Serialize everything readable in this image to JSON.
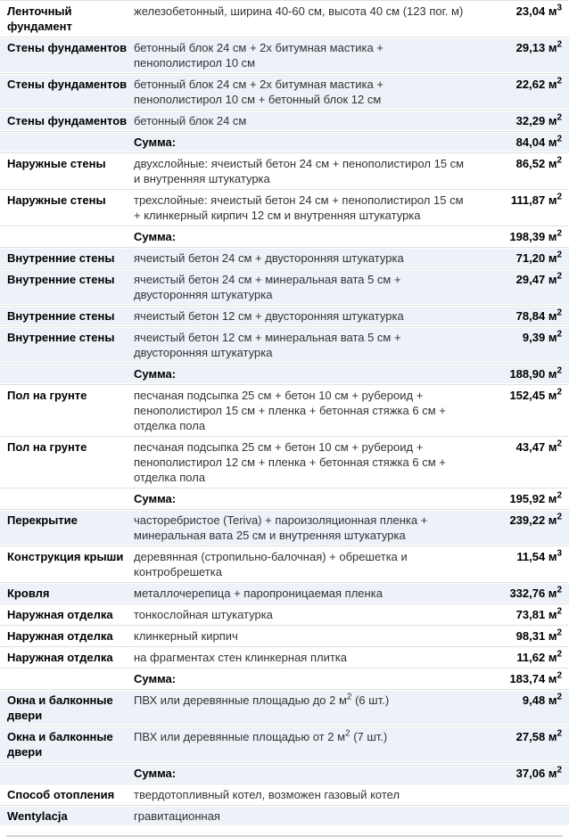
{
  "colors": {
    "tint_row_bg": "#edf1f8",
    "row_divider": "#e0e0e0",
    "bottom_divider": "#d5d5d5",
    "label_text": "#000000",
    "desc_text": "#333333"
  },
  "table": {
    "rows": [
      {
        "label": "Ленточный фундамент",
        "desc": [
          {
            "t": "железобетонный, ширина 40-60 см, высота 40 см (123 пог. м)"
          }
        ],
        "value": "23,04",
        "unit": "м",
        "exp": "3",
        "tint": false,
        "sum": false
      },
      {
        "label": "Стены фундаментов",
        "desc": [
          {
            "t": "бетонный блок 24 см + 2х битумная мастика + пенополистирол 10 см"
          }
        ],
        "value": "29,13",
        "unit": "м",
        "exp": "2",
        "tint": true,
        "sum": false
      },
      {
        "label": "Стены фундаментов",
        "desc": [
          {
            "t": "бетонный блок 24 см + 2х битумная мастика + пенополистирол 10 см + бетонный блок 12 см"
          }
        ],
        "value": "22,62",
        "unit": "м",
        "exp": "2",
        "tint": true,
        "sum": false
      },
      {
        "label": "Стены фундаментов",
        "desc": [
          {
            "t": "бетонный блок 24 см"
          }
        ],
        "value": "32,29",
        "unit": "м",
        "exp": "2",
        "tint": true,
        "sum": false
      },
      {
        "label": "",
        "desc": [
          {
            "t": "Сумма:"
          }
        ],
        "value": "84,04",
        "unit": "м",
        "exp": "2",
        "tint": true,
        "sum": true
      },
      {
        "label": "Наружные стены",
        "desc": [
          {
            "t": "двухслойные: ячеистый бетон 24 см + пенополистирол 15 см и внутренняя штукатурка"
          }
        ],
        "value": "86,52",
        "unit": "м",
        "exp": "2",
        "tint": false,
        "sum": false
      },
      {
        "label": "Наружные стены",
        "desc": [
          {
            "t": "трехслойные: ячеистый бетон 24 см + пенополистирол 15 см + клинкерный кирпич 12 см и внутренняя штукатурка"
          }
        ],
        "value": "111,87",
        "unit": "м",
        "exp": "2",
        "tint": false,
        "sum": false
      },
      {
        "label": "",
        "desc": [
          {
            "t": "Сумма:"
          }
        ],
        "value": "198,39",
        "unit": "м",
        "exp": "2",
        "tint": false,
        "sum": true
      },
      {
        "label": "Внутренние стены",
        "desc": [
          {
            "t": "ячеистый бетон 24 см + двусторонняя штукатурка"
          }
        ],
        "value": "71,20",
        "unit": "м",
        "exp": "2",
        "tint": true,
        "sum": false
      },
      {
        "label": "Внутренние стены",
        "desc": [
          {
            "t": "ячеистый бетон 24 см + минеральная вата 5 см + двусторонняя штукатурка"
          }
        ],
        "value": "29,47",
        "unit": "м",
        "exp": "2",
        "tint": true,
        "sum": false
      },
      {
        "label": "Внутренние стены",
        "desc": [
          {
            "t": "ячеистый бетон 12 см + двусторонняя штукатурка"
          }
        ],
        "value": "78,84",
        "unit": "м",
        "exp": "2",
        "tint": true,
        "sum": false
      },
      {
        "label": "Внутренние стены",
        "desc": [
          {
            "t": "ячеистый бетон 12 см + минеральная вата 5 см + двусторонняя штукатурка"
          }
        ],
        "value": "9,39",
        "unit": "м",
        "exp": "2",
        "tint": true,
        "sum": false
      },
      {
        "label": "",
        "desc": [
          {
            "t": "Сумма:"
          }
        ],
        "value": "188,90",
        "unit": "м",
        "exp": "2",
        "tint": true,
        "sum": true
      },
      {
        "label": "Пол на грунте",
        "desc": [
          {
            "t": "песчаная подсыпка 25 см + бетон 10 см + рубероид + пенополистирол 15 см + пленка + бетонная стяжка 6 см + отделка пола"
          }
        ],
        "value": "152,45",
        "unit": "м",
        "exp": "2",
        "tint": false,
        "sum": false
      },
      {
        "label": "Пол на грунте",
        "desc": [
          {
            "t": "песчаная подсыпка 25 см + бетон 10 см + рубероид + пенополистирол 12 см + пленка + бетонная стяжка 6 см + отделка пола"
          }
        ],
        "value": "43,47",
        "unit": "м",
        "exp": "2",
        "tint": false,
        "sum": false
      },
      {
        "label": "",
        "desc": [
          {
            "t": "Сумма:"
          }
        ],
        "value": "195,92",
        "unit": "м",
        "exp": "2",
        "tint": false,
        "sum": true
      },
      {
        "label": "Перекрытие",
        "desc": [
          {
            "t": "часторебристое (Teriva) + пароизоляционная пленка + минеральная вата 25 см и внутренняя штукатурка"
          }
        ],
        "value": "239,22",
        "unit": "м",
        "exp": "2",
        "tint": true,
        "sum": false
      },
      {
        "label": "Конструкция крыши",
        "desc": [
          {
            "t": "деревянная (стропильно-балочная) + обрешетка и контробрешетка"
          }
        ],
        "value": "11,54",
        "unit": "м",
        "exp": "3",
        "tint": false,
        "sum": false
      },
      {
        "label": "Кровля",
        "desc": [
          {
            "t": "металлочерепица + паропроницаемая пленка"
          }
        ],
        "value": "332,76",
        "unit": "м",
        "exp": "2",
        "tint": true,
        "sum": false
      },
      {
        "label": "Наружная отделка",
        "desc": [
          {
            "t": "тонкослойная штукатурка"
          }
        ],
        "value": "73,81",
        "unit": "м",
        "exp": "2",
        "tint": false,
        "sum": false
      },
      {
        "label": "Наружная отделка",
        "desc": [
          {
            "t": "клинкерный кирпич"
          }
        ],
        "value": "98,31",
        "unit": "м",
        "exp": "2",
        "tint": false,
        "sum": false
      },
      {
        "label": "Наружная отделка",
        "desc": [
          {
            "t": "на фрагментах стен клинкерная плитка"
          }
        ],
        "value": "11,62",
        "unit": "м",
        "exp": "2",
        "tint": false,
        "sum": false
      },
      {
        "label": "",
        "desc": [
          {
            "t": "Сумма:"
          }
        ],
        "value": "183,74",
        "unit": "м",
        "exp": "2",
        "tint": false,
        "sum": true
      },
      {
        "label": "Окна и балконные двери",
        "desc": [
          {
            "t": "ПВХ или деревянные площадью до 2 м"
          },
          {
            "s": "2"
          },
          {
            "t": " (6 шт.)"
          }
        ],
        "value": "9,48",
        "unit": "м",
        "exp": "2",
        "tint": true,
        "sum": false
      },
      {
        "label": "Окна и балконные двери",
        "desc": [
          {
            "t": "ПВХ или деревянные площадью от 2 м"
          },
          {
            "s": "2"
          },
          {
            "t": " (7 шт.)"
          }
        ],
        "value": "27,58",
        "unit": "м",
        "exp": "2",
        "tint": true,
        "sum": false
      },
      {
        "label": "",
        "desc": [
          {
            "t": "Сумма:"
          }
        ],
        "value": "37,06",
        "unit": "м",
        "exp": "2",
        "tint": true,
        "sum": true
      },
      {
        "label": "Способ отопления",
        "desc": [
          {
            "t": "твердотопливный котел, возможен газовый котел"
          }
        ],
        "value": null,
        "unit": null,
        "exp": null,
        "tint": false,
        "sum": false
      },
      {
        "label": "Wentylacja",
        "desc": [
          {
            "t": "гравитационная"
          }
        ],
        "value": null,
        "unit": null,
        "exp": null,
        "tint": true,
        "sum": false
      }
    ]
  }
}
